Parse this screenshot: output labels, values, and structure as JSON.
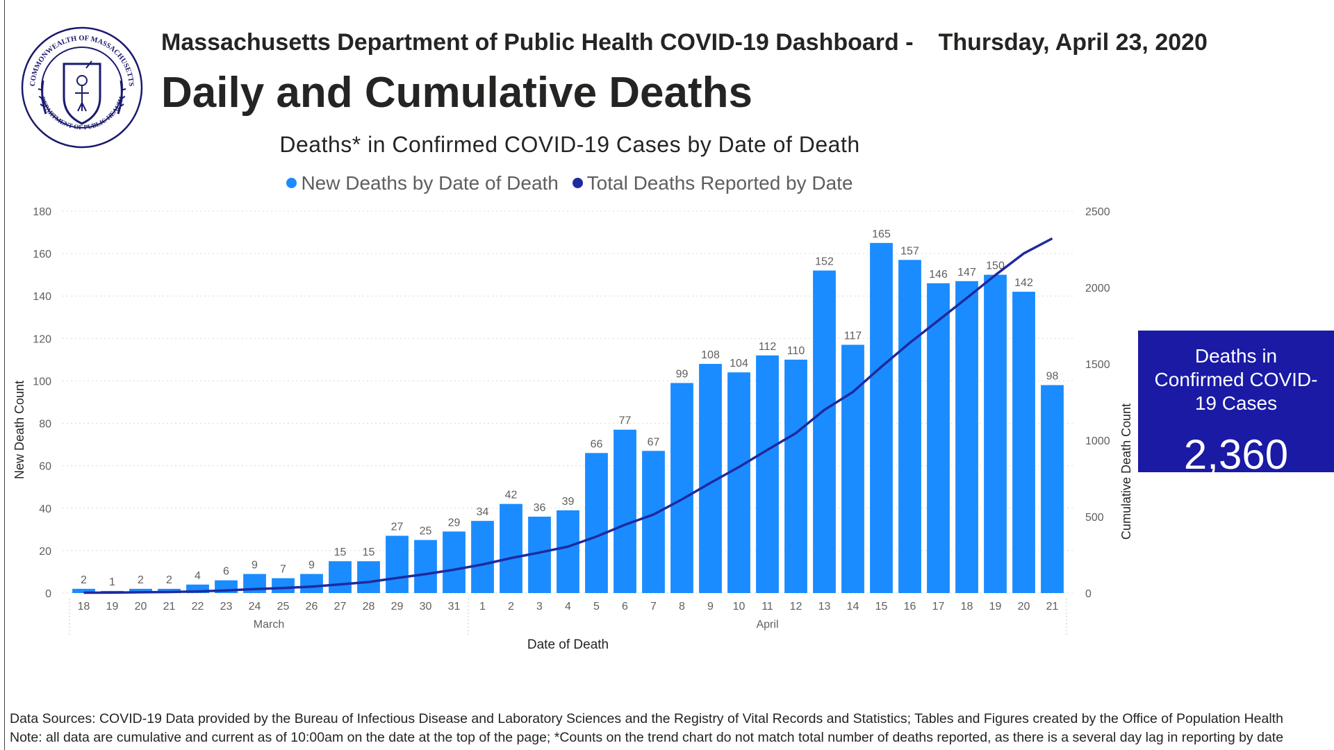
{
  "header": {
    "agency_dashboard": "Massachusetts Department of Public Health COVID-19 Dashboard -",
    "date": "Thursday, April 23, 2020",
    "title": "Daily and Cumulative Deaths"
  },
  "seal": {
    "icon": "commonwealth-seal-icon",
    "ring_text_top": "COMMONWEALTH OF MASSACHUSETTS",
    "ring_text_bottom": "DEPARTMENT OF PUBLIC HEALTH"
  },
  "kpi": {
    "label": "Deaths in Confirmed COVID-19 Cases",
    "value": "2,360",
    "color": "#1a1aa5"
  },
  "footer": {
    "sources": "Data Sources: COVID-19 Data provided by the Bureau of Infectious Disease and Laboratory Sciences and the Registry of Vital Records and Statistics; Tables and Figures created by the Office of Population Health",
    "note": "Note: all data are cumulative and current as of 10:00am on the date at the top of the page; *Counts on the trend chart do not match total number of deaths reported, as there is a several day lag in reporting by date"
  },
  "chart_data": {
    "type": "bar",
    "title": "Deaths* in Confirmed COVID-19 Cases by Date of Death",
    "xlabel": "Date of Death",
    "ylabel": "New Death Count",
    "y2label": "Cumulative Death Count",
    "ylim": [
      0,
      180
    ],
    "y2lim": [
      0,
      2500
    ],
    "yticks": [
      0,
      20,
      40,
      60,
      80,
      100,
      120,
      140,
      160,
      180
    ],
    "y2ticks": [
      0,
      500,
      1000,
      1500,
      2000,
      2500
    ],
    "grid": true,
    "legend_position": "top",
    "categories": [
      "18",
      "19",
      "20",
      "21",
      "22",
      "23",
      "24",
      "25",
      "26",
      "27",
      "28",
      "29",
      "30",
      "31",
      "1",
      "2",
      "3",
      "4",
      "5",
      "6",
      "7",
      "8",
      "9",
      "10",
      "11",
      "12",
      "13",
      "14",
      "15",
      "16",
      "17",
      "18",
      "19",
      "20",
      "21"
    ],
    "month_groups": [
      {
        "label": "March",
        "count": 14
      },
      {
        "label": "April",
        "count": 21
      }
    ],
    "series": [
      {
        "name": "New Deaths by Date of Death",
        "type": "bar",
        "axis": "left",
        "color": "#1a8cff",
        "values": [
          2,
          1,
          2,
          2,
          4,
          6,
          9,
          7,
          9,
          15,
          15,
          27,
          25,
          29,
          34,
          42,
          36,
          39,
          66,
          77,
          67,
          99,
          108,
          104,
          112,
          110,
          152,
          117,
          165,
          157,
          146,
          147,
          150,
          142,
          98
        ]
      },
      {
        "name": "Total Deaths Reported by Date",
        "type": "line",
        "axis": "right",
        "color": "#1f2a9e",
        "values": [
          2,
          3,
          5,
          7,
          11,
          17,
          26,
          33,
          42,
          57,
          72,
          99,
          124,
          153,
          187,
          229,
          265,
          304,
          370,
          447,
          514,
          613,
          721,
          825,
          937,
          1047,
          1199,
          1316,
          1481,
          1638,
          1784,
          1931,
          2081,
          2223,
          2321
        ]
      }
    ]
  }
}
